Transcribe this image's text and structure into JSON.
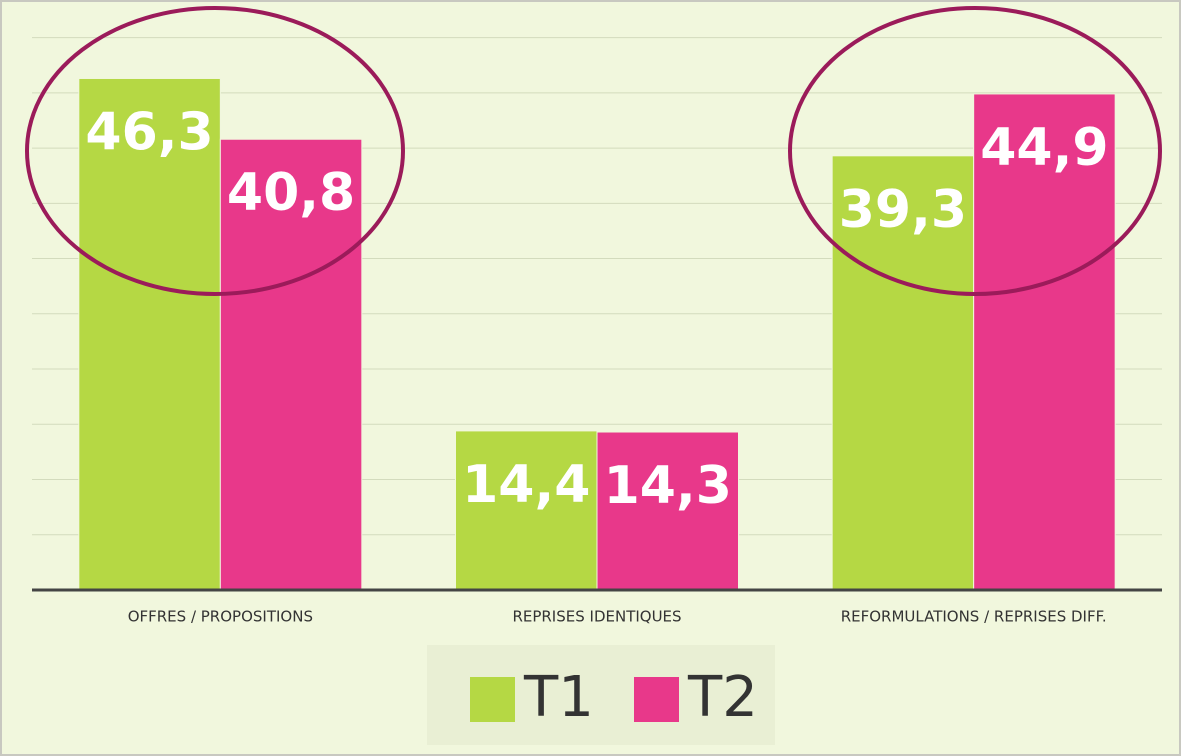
{
  "chart_data": {
    "type": "bar",
    "categories": [
      "OFFRES / PROPOSITIONS",
      "REPRISES IDENTIQUES",
      "REFORMULATIONS / REPRISES DIFF."
    ],
    "series": [
      {
        "name": "T1",
        "color": "#b5d844",
        "values": [
          46.3,
          14.4,
          39.3
        ],
        "value_labels": [
          "46,3",
          "14,4",
          "39,3"
        ]
      },
      {
        "name": "T2",
        "color": "#e8388a",
        "values": [
          40.8,
          14.3,
          44.9
        ],
        "value_labels": [
          "40,8",
          "14,3",
          "44,9"
        ]
      }
    ],
    "ylim": [
      0,
      50
    ],
    "yticks": [
      0,
      5,
      10,
      15,
      20,
      25,
      30,
      35,
      40,
      45,
      50
    ],
    "grid": true,
    "legend": "bottom"
  }
}
